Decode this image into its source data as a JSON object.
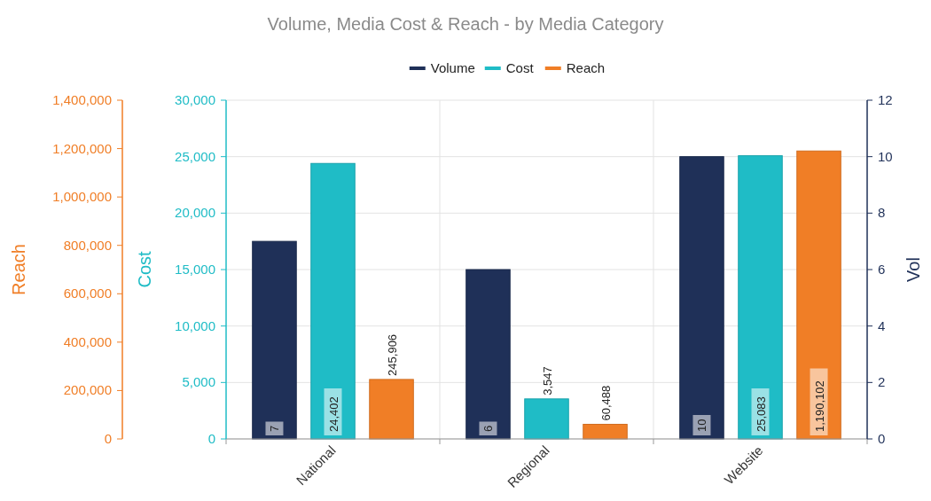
{
  "chart_data": {
    "type": "bar",
    "title": "Volume, Media Cost & Reach - by Media Category",
    "categories": [
      "National",
      "Regional",
      "Website"
    ],
    "series": [
      {
        "name": "Volume",
        "color": "#1f3058",
        "axis": "y2",
        "values": [
          7,
          6,
          10
        ],
        "value_labels": [
          "7",
          "6",
          "10"
        ]
      },
      {
        "name": "Cost",
        "color": "#1fbcc6",
        "axis": "y",
        "values": [
          24402,
          3547,
          25083
        ],
        "value_labels": [
          "24,402",
          "3,547",
          "25,083"
        ]
      },
      {
        "name": "Reach",
        "color": "#f07e26",
        "axis": "y3",
        "values": [
          245906,
          60488,
          1190102
        ],
        "value_labels": [
          "245,906",
          "60,488",
          "1,190,102"
        ]
      }
    ],
    "ylabel": "Cost",
    "y2label": "Vol",
    "y3label": "Reach",
    "ylim": [
      0,
      30000
    ],
    "yticks": [
      0,
      {
        "value": 5000,
        "label": "5,000"
      },
      {
        "value": 10000,
        "label": "10,000"
      },
      {
        "value": 15000,
        "label": "15,000"
      },
      {
        "value": 20000,
        "label": "20,000"
      },
      {
        "value": 25000,
        "label": "25,000"
      },
      {
        "value": 30000,
        "label": "30,000"
      }
    ],
    "y2lim": [
      0,
      12
    ],
    "y2ticks": [
      0,
      2,
      4,
      6,
      8,
      10,
      12
    ],
    "y3lim": [
      0,
      1400000
    ],
    "y3ticks": [
      0,
      {
        "value": 200000,
        "label": "200,000"
      },
      {
        "value": 400000,
        "label": "400,000"
      },
      {
        "value": 600000,
        "label": "600,000"
      },
      {
        "value": 800000,
        "label": "800,000"
      },
      {
        "value": 1000000,
        "label": "1,000,000"
      },
      {
        "value": 1200000,
        "label": "1,200,000"
      },
      {
        "value": 1400000,
        "label": "1,400,000"
      }
    ],
    "grid": true,
    "legend": "top"
  }
}
